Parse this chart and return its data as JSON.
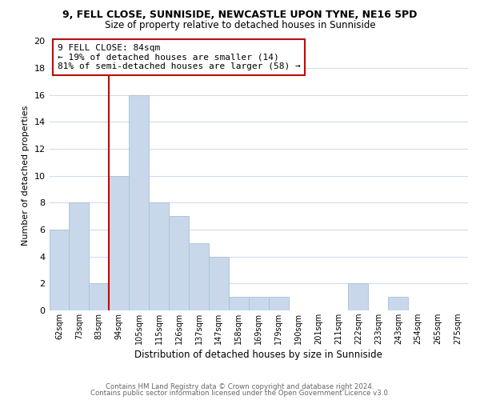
{
  "title": "9, FELL CLOSE, SUNNISIDE, NEWCASTLE UPON TYNE, NE16 5PD",
  "subtitle": "Size of property relative to detached houses in Sunniside",
  "xlabel": "Distribution of detached houses by size in Sunniside",
  "ylabel": "Number of detached properties",
  "bin_labels": [
    "62sqm",
    "73sqm",
    "83sqm",
    "94sqm",
    "105sqm",
    "115sqm",
    "126sqm",
    "137sqm",
    "147sqm",
    "158sqm",
    "169sqm",
    "179sqm",
    "190sqm",
    "201sqm",
    "211sqm",
    "222sqm",
    "233sqm",
    "243sqm",
    "254sqm",
    "265sqm",
    "275sqm"
  ],
  "bar_heights": [
    6,
    8,
    2,
    10,
    16,
    8,
    7,
    5,
    4,
    1,
    1,
    1,
    0,
    0,
    0,
    2,
    0,
    1,
    0,
    0,
    0
  ],
  "bar_color": "#c8d8ea",
  "bar_edge_color": "#a8c0d8",
  "highlight_line_index": 2,
  "highlight_color": "#cc0000",
  "annotation_title": "9 FELL CLOSE: 84sqm",
  "annotation_line1": "← 19% of detached houses are smaller (14)",
  "annotation_line2": "81% of semi-detached houses are larger (58) →",
  "annotation_box_color": "#ffffff",
  "annotation_box_edge": "#cc0000",
  "ylim": [
    0,
    20
  ],
  "yticks": [
    0,
    2,
    4,
    6,
    8,
    10,
    12,
    14,
    16,
    18,
    20
  ],
  "footer1": "Contains HM Land Registry data © Crown copyright and database right 2024.",
  "footer2": "Contains public sector information licensed under the Open Government Licence v3.0.",
  "bg_color": "#ffffff",
  "grid_color": "#ccd8e8",
  "title_fontsize": 9,
  "subtitle_fontsize": 8.5,
  "ylabel_fontsize": 8,
  "xlabel_fontsize": 8.5
}
